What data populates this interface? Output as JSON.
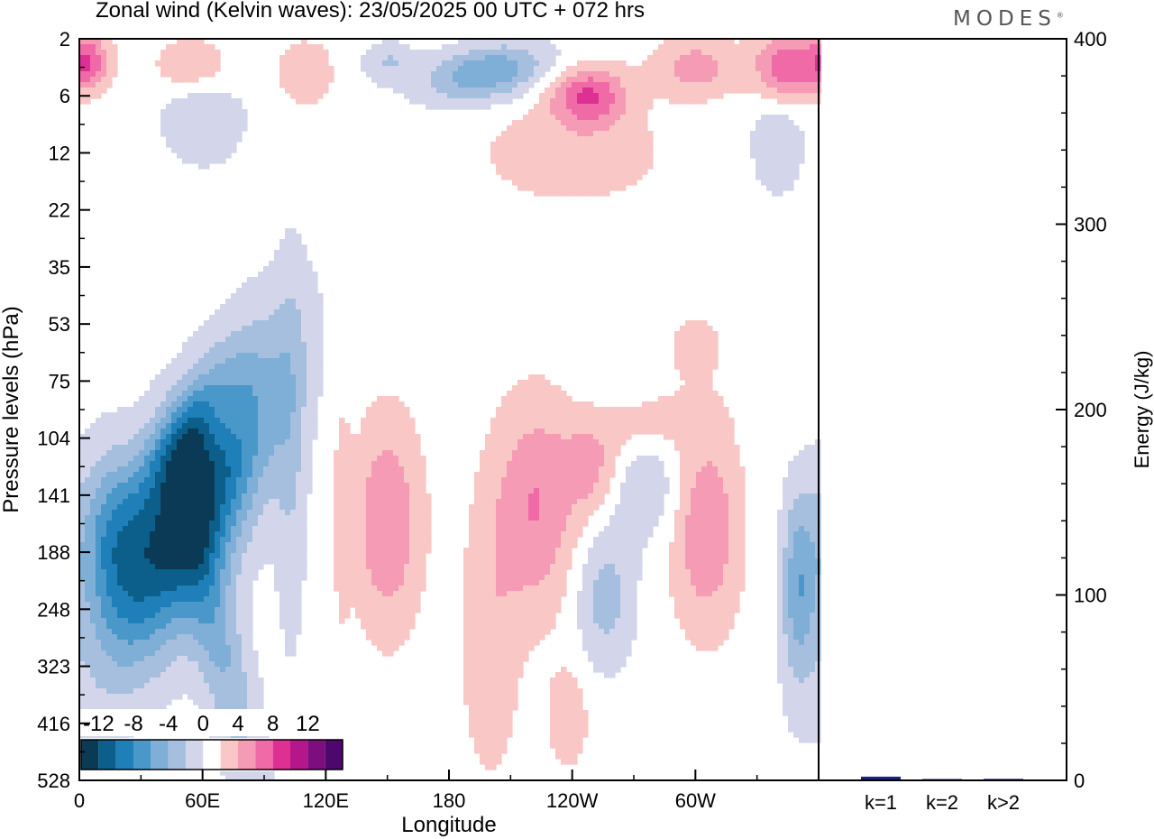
{
  "title": "Zonal wind (Kelvin waves):  23/05/2025  00 UTC  + 072 hrs",
  "brand": "MODES",
  "brand_mark": "®",
  "palette": {
    "-14": "#0b3a57",
    "-12": "#0b5f8a",
    "-10": "#1f7fb8",
    "-8": "#4a97c9",
    "-6": "#7faed6",
    "-4": "#a7bfdf",
    "-2": "#d3d6ea",
    "0": "#ffffff",
    "2": "#f9c8c6",
    "4": "#f69bb6",
    "6": "#f06aa8",
    "8": "#de2f92",
    "10": "#b5168a",
    "12": "#7c0e7e",
    "14": "#4e076c"
  },
  "chart_data": [
    {
      "type": "heatmap",
      "title": "Zonal wind (Kelvin waves):  23/05/2025  00 UTC  + 072 hrs",
      "xlabel": "Longitude",
      "ylabel": "Pressure levels (hPa)",
      "x_ticks": [
        "0",
        "60E",
        "120E",
        "180",
        "120W",
        "60W"
      ],
      "x_range": [
        0,
        360
      ],
      "y_ticks": [
        "2",
        "6",
        "12",
        "22",
        "35",
        "53",
        "75",
        "104",
        "141",
        "188",
        "248",
        "323",
        "416",
        "528"
      ],
      "colorbar": {
        "tick_labels": [
          "-12",
          "-8",
          "-4",
          "0",
          "4",
          "8",
          "12"
        ],
        "levels": [
          -14,
          -12,
          -10,
          -8,
          -6,
          -4,
          -2,
          0,
          2,
          4,
          6,
          8,
          10,
          12,
          14
        ]
      },
      "features": [
        {
          "lon": 55,
          "level_index": 8.2,
          "lon_halfwidth": 28,
          "level_halfwidth": 2.6,
          "value": -14,
          "tilt": -0.9
        },
        {
          "lon": 16,
          "level_index": 8.7,
          "lon_halfwidth": 18,
          "level_halfwidth": 1.5,
          "value": -7,
          "tilt": 0
        },
        {
          "lon": 68,
          "level_index": 10.6,
          "lon_halfwidth": 13,
          "level_halfwidth": 2.6,
          "value": -5,
          "tilt": 0.5
        },
        {
          "lon": 50,
          "level_index": 7.0,
          "lon_halfwidth": 14,
          "level_halfwidth": 1.0,
          "value": -5,
          "tilt": -1
        },
        {
          "lon": 103,
          "level_index": 7.5,
          "lon_halfwidth": 8,
          "level_halfwidth": 3.5,
          "value": -2.5,
          "tilt": 0
        },
        {
          "lon": 275,
          "level_index": 7.8,
          "lon_halfwidth": 20,
          "level_halfwidth": 1.0,
          "value": -2.8,
          "tilt": 0
        },
        {
          "lon": 350,
          "level_index": 9.6,
          "lon_halfwidth": 8,
          "level_halfwidth": 1.6,
          "value": -6,
          "tilt": 0
        },
        {
          "lon": 256,
          "level_index": 9.8,
          "lon_halfwidth": 14,
          "level_halfwidth": 1.2,
          "value": -4,
          "tilt": 0
        },
        {
          "lon": 198,
          "level_index": 0.6,
          "lon_halfwidth": 28,
          "level_halfwidth": 0.5,
          "value": -7,
          "tilt": -1.5
        },
        {
          "lon": 150,
          "level_index": 0.4,
          "lon_halfwidth": 12,
          "level_halfwidth": 0.35,
          "value": -3,
          "tilt": 0
        },
        {
          "lon": 60,
          "level_index": 1.4,
          "lon_halfwidth": 20,
          "level_halfwidth": 0.8,
          "value": -3,
          "tilt": 0
        },
        {
          "lon": 340,
          "level_index": 1.8,
          "lon_halfwidth": 14,
          "level_halfwidth": 1.0,
          "value": -2.4,
          "tilt": 0
        },
        {
          "lon": 150,
          "level_index": 8.5,
          "lon_halfwidth": 16,
          "level_halfwidth": 1.8,
          "value": 5,
          "tilt": 0
        },
        {
          "lon": 222,
          "level_index": 8.2,
          "lon_halfwidth": 20,
          "level_halfwidth": 1.8,
          "value": 5,
          "tilt": 0
        },
        {
          "lon": 305,
          "level_index": 8.6,
          "lon_halfwidth": 16,
          "level_halfwidth": 1.7,
          "value": 5,
          "tilt": 0
        },
        {
          "lon": 250,
          "level_index": 7.6,
          "lon_halfwidth": 14,
          "level_halfwidth": 0.8,
          "value": 3.5,
          "tilt": 0
        },
        {
          "lon": 200,
          "level_index": 10.6,
          "lon_halfwidth": 14,
          "level_halfwidth": 2.4,
          "value": 2.4,
          "tilt": 0
        },
        {
          "lon": 238,
          "level_index": 11.9,
          "lon_halfwidth": 10,
          "level_halfwidth": 0.9,
          "value": 2.4,
          "tilt": 0
        },
        {
          "lon": 128,
          "level_index": 8.3,
          "lon_halfwidth": 4,
          "level_halfwidth": 1.8,
          "value": 2.2,
          "tilt": 0
        },
        {
          "lon": 275,
          "level_index": 6.8,
          "lon_halfwidth": 28,
          "level_halfwidth": 0.6,
          "value": 2.2,
          "tilt": -1
        },
        {
          "lon": 300,
          "level_index": 5.4,
          "lon_halfwidth": 12,
          "level_halfwidth": 0.5,
          "value": 2.2,
          "tilt": 0
        },
        {
          "lon": 70,
          "level_index": 6.7,
          "lon_halfwidth": 10,
          "level_halfwidth": 0.7,
          "value": 2.5,
          "tilt": 0
        },
        {
          "lon": 248,
          "level_index": 1.0,
          "lon_halfwidth": 18,
          "level_halfwidth": 0.5,
          "value": 7,
          "tilt": 0
        },
        {
          "lon": 345,
          "level_index": 0.5,
          "lon_halfwidth": 16,
          "level_halfwidth": 0.6,
          "value": 7,
          "tilt": 0
        },
        {
          "lon": 300,
          "level_index": 0.5,
          "lon_halfwidth": 20,
          "level_halfwidth": 0.5,
          "value": 4,
          "tilt": 0
        },
        {
          "lon": 240,
          "level_index": 2.0,
          "lon_halfwidth": 45,
          "level_halfwidth": 0.9,
          "value": 2.2,
          "tilt": 0
        },
        {
          "lon": 5,
          "level_index": 0.4,
          "lon_halfwidth": 10,
          "level_halfwidth": 0.45,
          "value": 6,
          "tilt": 0
        },
        {
          "lon": 55,
          "level_index": 0.5,
          "lon_halfwidth": 18,
          "level_halfwidth": 0.5,
          "value": 3,
          "tilt": 0
        },
        {
          "lon": 110,
          "level_index": 0.6,
          "lon_halfwidth": 14,
          "level_halfwidth": 0.6,
          "value": 2.4,
          "tilt": 0
        }
      ]
    },
    {
      "type": "bar",
      "categories": [
        "k=1",
        "k=2",
        "k>2"
      ],
      "values": [
        2,
        0.5,
        0.8
      ],
      "ylabel": "Energy (J/kg)",
      "ylim": [
        0,
        400
      ],
      "y_ticks": [
        "0",
        "100",
        "200",
        "300",
        "400"
      ],
      "color": "#1a237e"
    }
  ]
}
